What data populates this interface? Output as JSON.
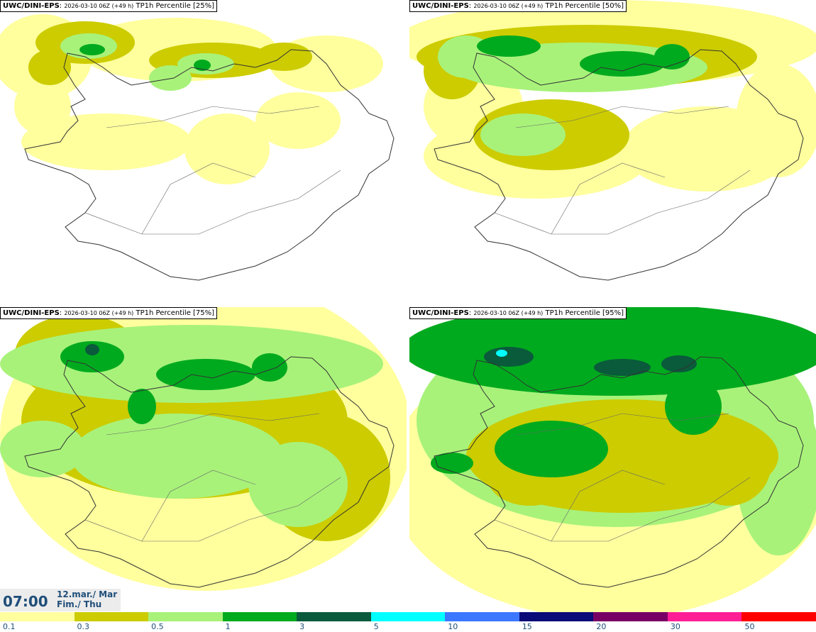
{
  "panels": [
    {
      "model": "UWC/DINI-EPS",
      "run": "2026-03-10 06Z (+49 h)",
      "product": "TP1h Percentile [25%]",
      "level": 0
    },
    {
      "model": "UWC/DINI-EPS",
      "run": "2026-03-10 06Z (+49 h)",
      "product": "TP1h Percentile [50%]",
      "level": 1
    },
    {
      "model": "UWC/DINI-EPS",
      "run": "2026-03-10 06Z (+49 h)",
      "product": "TP1h Percentile [75%]",
      "level": 2
    },
    {
      "model": "UWC/DINI-EPS",
      "run": "2026-03-10 06Z (+49 h)",
      "product": "TP1h Percentile [95%]",
      "level": 3
    }
  ],
  "valid_time": {
    "time": "07:00",
    "date": "12.mar./ Mar",
    "day": "Fim./ Thu"
  },
  "colorbar": {
    "ticks": [
      "0.1",
      "0.3",
      "0.5",
      "1",
      "3",
      "5",
      "10",
      "15",
      "20",
      "30",
      "50"
    ],
    "colors": [
      "#ffff9e",
      "#cccc00",
      "#a8f27a",
      "#00aa1e",
      "#0a5a3c",
      "#00ffff",
      "#3c78ff",
      "#0a0a78",
      "#780064",
      "#ff1e96",
      "#ff0000"
    ]
  }
}
